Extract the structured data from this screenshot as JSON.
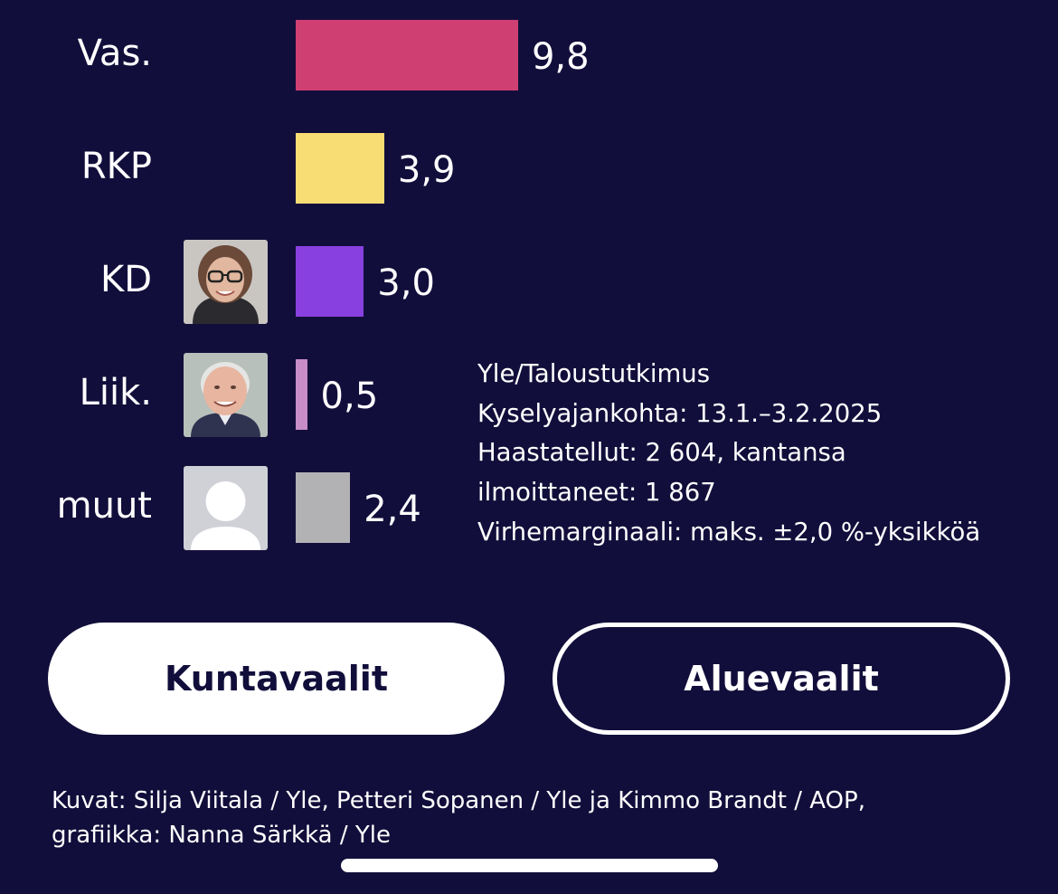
{
  "chart_data": {
    "type": "bar",
    "orientation": "horizontal",
    "categories": [
      "Vas.",
      "RKP",
      "KD",
      "Liik.",
      "muut"
    ],
    "values": [
      9.8,
      3.9,
      3.0,
      0.5,
      2.4
    ],
    "value_labels": [
      "9,8",
      "3,9",
      "3,0",
      "0,5",
      "2,4"
    ],
    "colors": [
      "#d03f72",
      "#f8dc74",
      "#8940e0",
      "#c88cc8",
      "#b2b2b4"
    ],
    "avatars": [
      null,
      null,
      "person-photo",
      "person-photo",
      "placeholder-avatar"
    ]
  },
  "info": {
    "lines": [
      "Yle/Taloustutkimus",
      "Kyselyajankohta: 13.1.–3.2.2025",
      "Haastatellut: 2 604, kantansa",
      "ilmoittaneet: 1 867",
      "Virhemarginaali: maks. ±2,0 %-yksikköä"
    ]
  },
  "buttons": {
    "kuntavaalit": "Kuntavaalit",
    "aluevaalit": "Aluevaalit"
  },
  "credits": {
    "line1": "Kuvat: Silja Viitala / Yle, Petteri Sopanen / Yle ja Kimmo Brandt / AOP,",
    "line2": "grafiikka: Nanna Särkkä / Yle"
  }
}
